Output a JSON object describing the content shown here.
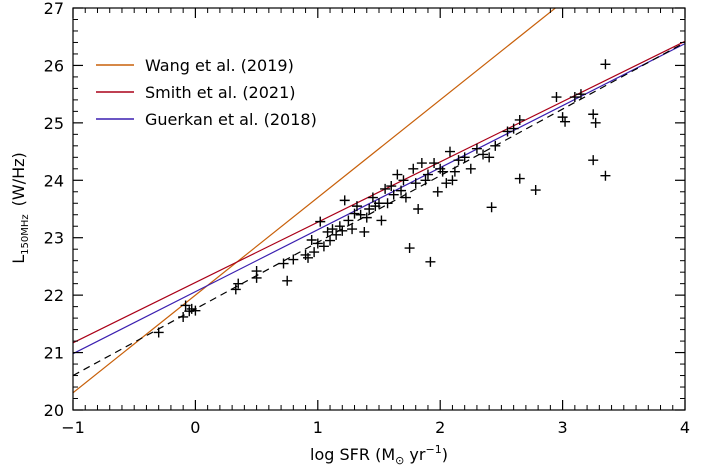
{
  "chart_data": {
    "type": "scatter",
    "xlabel": "log SFR (M",
    "xlabel_sun": "⊙",
    "xlabel_unit": " yr",
    "xlabel_exp": "−1",
    "xlabel_close": ")",
    "ylabel_main": "L",
    "ylabel_sub": "150MHz",
    "ylabel_unit": "(W/Hz)",
    "xlim": [
      -1,
      4
    ],
    "ylim": [
      20,
      27
    ],
    "x_ticks": [
      "−1",
      "0",
      "1",
      "2",
      "3",
      "4"
    ],
    "y_ticks": [
      "20",
      "21",
      "22",
      "23",
      "24",
      "25",
      "26",
      "27"
    ],
    "legend_position": "top-left",
    "series": [
      {
        "name": "Wang et al. (2019)",
        "kind": "line",
        "color": "#c8600a",
        "intercept": 22.0,
        "slope": 1.7
      },
      {
        "name": "Smith et al. (2021)",
        "kind": "line",
        "color": "#aa0018",
        "intercept": 22.22,
        "slope": 1.05
      },
      {
        "name": "Guerkan et al. (2018)",
        "kind": "line",
        "color": "#3a1fb0",
        "intercept": 22.06,
        "slope": 1.08
      },
      {
        "name": "",
        "kind": "dashed-line",
        "color": "#000000",
        "x": [
          -1,
          4
        ],
        "y": [
          20.6,
          26.4
        ]
      }
    ],
    "points": [
      [
        -0.3,
        21.35
      ],
      [
        -0.1,
        21.62
      ],
      [
        -0.08,
        21.82
      ],
      [
        -0.05,
        21.72
      ],
      [
        -0.03,
        21.76
      ],
      [
        0.0,
        21.73
      ],
      [
        0.33,
        22.1
      ],
      [
        0.35,
        22.2
      ],
      [
        0.5,
        22.3
      ],
      [
        0.5,
        22.42
      ],
      [
        0.72,
        22.55
      ],
      [
        0.75,
        22.25
      ],
      [
        0.8,
        22.62
      ],
      [
        0.9,
        22.7
      ],
      [
        0.92,
        22.65
      ],
      [
        0.95,
        22.96
      ],
      [
        0.97,
        22.75
      ],
      [
        1.0,
        22.9
      ],
      [
        1.02,
        23.28
      ],
      [
        1.05,
        22.85
      ],
      [
        1.08,
        23.1
      ],
      [
        1.1,
        22.95
      ],
      [
        1.12,
        23.15
      ],
      [
        1.15,
        23.05
      ],
      [
        1.18,
        23.2
      ],
      [
        1.2,
        23.12
      ],
      [
        1.22,
        23.65
      ],
      [
        1.25,
        23.3
      ],
      [
        1.28,
        23.15
      ],
      [
        1.3,
        23.42
      ],
      [
        1.32,
        23.55
      ],
      [
        1.35,
        23.4
      ],
      [
        1.38,
        23.1
      ],
      [
        1.4,
        23.35
      ],
      [
        1.42,
        23.5
      ],
      [
        1.45,
        23.7
      ],
      [
        1.47,
        23.55
      ],
      [
        1.5,
        23.6
      ],
      [
        1.52,
        23.3
      ],
      [
        1.55,
        23.85
      ],
      [
        1.57,
        23.6
      ],
      [
        1.6,
        23.9
      ],
      [
        1.62,
        23.75
      ],
      [
        1.65,
        24.1
      ],
      [
        1.68,
        23.82
      ],
      [
        1.7,
        24.0
      ],
      [
        1.72,
        23.7
      ],
      [
        1.75,
        22.82
      ],
      [
        1.78,
        24.2
      ],
      [
        1.8,
        23.95
      ],
      [
        1.82,
        23.5
      ],
      [
        1.85,
        24.3
      ],
      [
        1.88,
        24.0
      ],
      [
        1.9,
        24.1
      ],
      [
        1.92,
        22.58
      ],
      [
        1.95,
        24.3
      ],
      [
        1.98,
        23.8
      ],
      [
        2.0,
        24.2
      ],
      [
        2.02,
        24.15
      ],
      [
        2.05,
        23.95
      ],
      [
        2.08,
        24.5
      ],
      [
        2.1,
        24.0
      ],
      [
        2.12,
        24.15
      ],
      [
        2.15,
        24.35
      ],
      [
        2.2,
        24.4
      ],
      [
        2.25,
        24.2
      ],
      [
        2.3,
        24.55
      ],
      [
        2.35,
        24.45
      ],
      [
        2.4,
        24.4
      ],
      [
        2.42,
        23.53
      ],
      [
        2.45,
        24.6
      ],
      [
        2.55,
        24.85
      ],
      [
        2.6,
        24.9
      ],
      [
        2.65,
        25.05
      ],
      [
        2.65,
        24.03
      ],
      [
        2.78,
        23.83
      ],
      [
        2.95,
        25.45
      ],
      [
        3.0,
        25.1
      ],
      [
        3.02,
        25.02
      ],
      [
        3.1,
        25.45
      ],
      [
        3.15,
        25.5
      ],
      [
        3.25,
        25.15
      ],
      [
        3.27,
        25.0
      ],
      [
        3.25,
        24.35
      ],
      [
        3.35,
        24.08
      ],
      [
        3.35,
        26.02
      ]
    ]
  }
}
